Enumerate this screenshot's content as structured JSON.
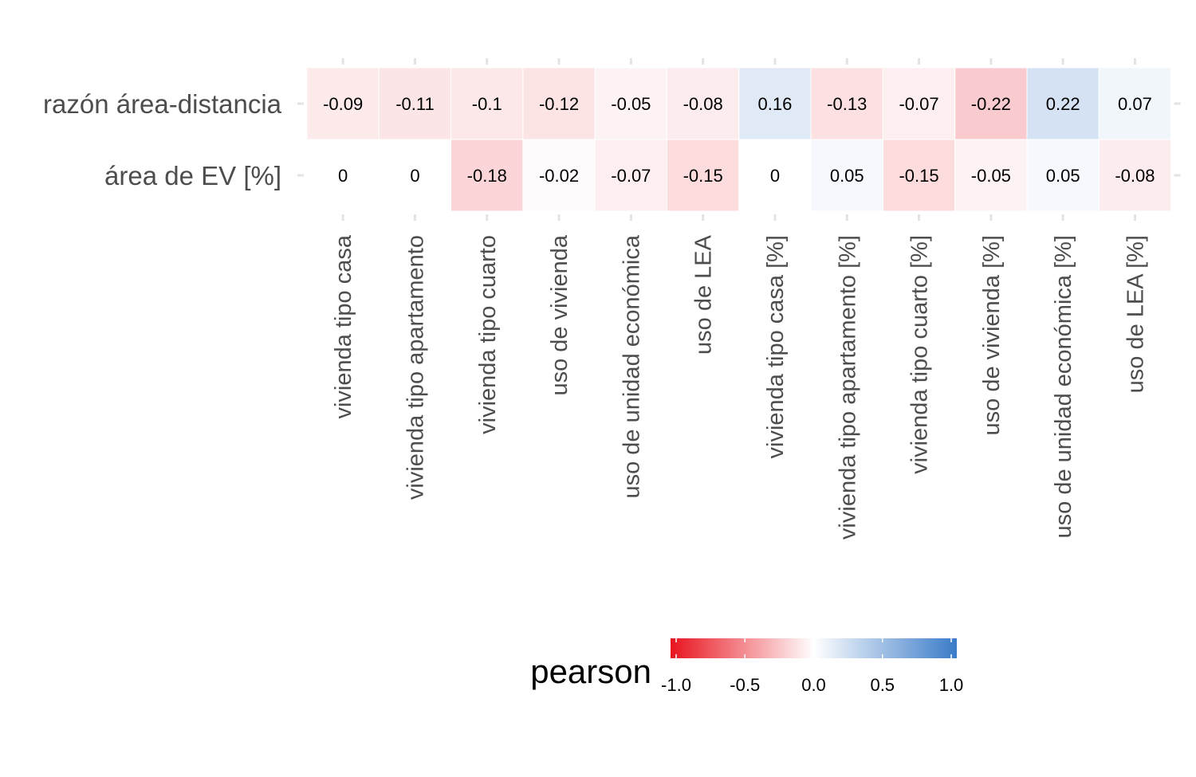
{
  "chart_data": {
    "type": "heatmap",
    "title": "",
    "xlabel": "",
    "ylabel": "",
    "rows": [
      "razón área-distancia",
      "área de EV [%]"
    ],
    "columns": [
      "vivienda tipo casa",
      "vivienda tipo apartamento",
      "vivienda tipo cuarto",
      "uso de vivienda",
      "uso de unidad económica",
      "uso de LEA",
      "vivienda tipo casa [%]",
      "vivienda tipo apartamento [%]",
      "vivienda tipo cuarto [%]",
      "uso de vivienda [%]",
      "uso de unidad económica [%]",
      "uso de LEA [%]"
    ],
    "values": [
      [
        -0.09,
        -0.11,
        -0.1,
        -0.12,
        -0.05,
        -0.08,
        0.16,
        -0.13,
        -0.07,
        -0.22,
        0.22,
        0.07
      ],
      [
        0,
        0,
        -0.18,
        -0.02,
        -0.07,
        -0.15,
        0,
        0.05,
        -0.15,
        -0.05,
        0.05,
        -0.08
      ]
    ],
    "legend": {
      "title": "pearson",
      "position": "bottom",
      "range": [
        -1,
        1
      ],
      "ticks": [
        -1.0,
        -0.5,
        0.0,
        0.5,
        1.0
      ],
      "tick_labels": [
        "-1.0",
        "-0.5",
        "0.0",
        "0.5",
        "1.0"
      ],
      "colors": {
        "low": "#e8141f",
        "mid": "#ffffff",
        "high": "#3a7bc8"
      }
    }
  }
}
